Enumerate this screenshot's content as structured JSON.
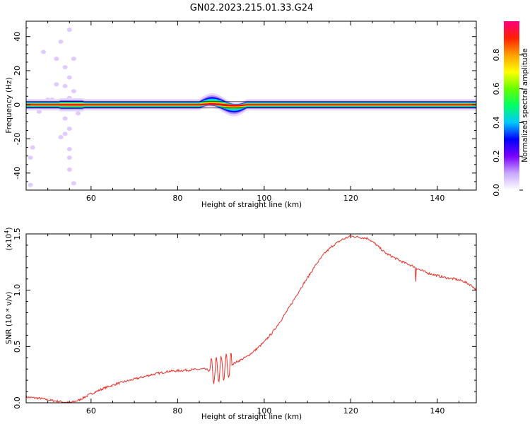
{
  "title": "GN02.2023.215.01.33.G24",
  "chart_data": [
    {
      "type": "heatmap",
      "xlabel": "Height of straight line (km)",
      "ylabel": "Frequency (Hz)",
      "xlim": [
        45,
        149
      ],
      "ylim": [
        -50,
        49
      ],
      "xticks": [
        60,
        80,
        100,
        120,
        140
      ],
      "yticks": [
        -40,
        -20,
        0,
        20,
        40
      ],
      "ytick_labels": [
        "-40",
        "-20",
        "0",
        "20",
        "40"
      ],
      "colorbar": {
        "label": "Normalized spectral amplitude",
        "range": [
          0,
          1
        ],
        "ticks": [
          0.0,
          0.2,
          0.4,
          0.6,
          0.8
        ],
        "tick_labels": [
          "0.0",
          "0.2",
          "0.4",
          "0.6",
          "0.8"
        ],
        "colors": [
          "#ffffff",
          "#c9a8ff",
          "#7a00ff",
          "#0000ff",
          "#00c8ff",
          "#00ff66",
          "#66ff00",
          "#ffff00",
          "#ffa000",
          "#ff2000",
          "#ff0080"
        ]
      },
      "band_center_hz": 0,
      "band_peak_amplitude": 1.0,
      "perturbation_center_km": 89,
      "perturbation_range_km": [
        85,
        96
      ]
    },
    {
      "type": "line",
      "xlabel": "Height of straight line (km)",
      "ylabel": "SNR (10 * v/v)",
      "y_scale_label": "(x10",
      "y_scale_exponent": "4",
      "xlim": [
        45,
        149
      ],
      "ylim": [
        0,
        1.5
      ],
      "xticks": [
        60,
        80,
        100,
        120,
        140
      ],
      "yticks": [
        0.0,
        0.5,
        1.0,
        1.5
      ],
      "ytick_labels": [
        "0.0",
        "0.5",
        "1.0",
        "1.5"
      ],
      "color": "#e8312a",
      "series": [
        {
          "x": [
            45,
            48,
            51,
            54,
            55,
            57,
            60,
            63,
            66,
            70,
            74,
            78,
            82,
            86,
            88,
            90,
            92,
            94,
            96,
            98,
            100,
            102,
            104,
            106,
            108,
            110,
            112,
            114,
            116,
            118,
            120,
            122,
            124,
            126,
            128,
            130,
            132,
            134,
            136,
            138,
            140,
            142,
            144,
            146,
            148,
            149
          ],
          "y": [
            0.05,
            0.04,
            0.02,
            0.005,
            0.0,
            0.02,
            0.08,
            0.13,
            0.17,
            0.21,
            0.25,
            0.28,
            0.29,
            0.3,
            0.28,
            0.3,
            0.33,
            0.37,
            0.41,
            0.47,
            0.54,
            0.63,
            0.74,
            0.86,
            0.99,
            1.11,
            1.23,
            1.33,
            1.4,
            1.45,
            1.48,
            1.47,
            1.46,
            1.4,
            1.33,
            1.29,
            1.25,
            1.22,
            1.18,
            1.15,
            1.13,
            1.11,
            1.1,
            1.08,
            1.04,
            1.0
          ]
        }
      ]
    }
  ]
}
